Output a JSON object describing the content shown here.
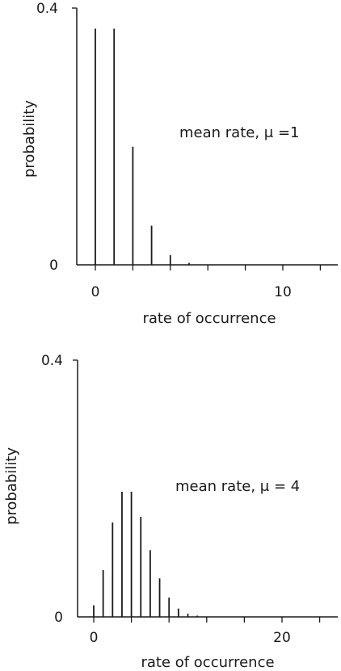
{
  "chart_data": [
    {
      "type": "bar",
      "style": "stem",
      "xlabel": "rate of occurrence",
      "ylabel": "probability",
      "annotation": "mean rate, μ =1",
      "ylim": [
        0,
        0.4
      ],
      "y_tick_labels": [
        "0",
        "0.4"
      ],
      "xlim": [
        -1,
        13
      ],
      "x_tick_labels": [
        "0",
        "10"
      ],
      "x": [
        0,
        1,
        2,
        3,
        4,
        5
      ],
      "values": [
        0.368,
        0.368,
        0.184,
        0.061,
        0.015,
        0.003
      ],
      "grid": false
    },
    {
      "type": "bar",
      "style": "stem",
      "xlabel": "rate of occurrence",
      "ylabel": "probability",
      "annotation": "mean rate, μ = 4",
      "ylim": [
        0,
        0.4
      ],
      "y_tick_labels": [
        "0",
        "0.4"
      ],
      "xlim": [
        -1,
        26
      ],
      "x_tick_labels": [
        "0",
        "20"
      ],
      "x": [
        0,
        1,
        2,
        3,
        4,
        5,
        6,
        7,
        8,
        9,
        10,
        11
      ],
      "values": [
        0.018,
        0.073,
        0.147,
        0.195,
        0.195,
        0.156,
        0.104,
        0.06,
        0.03,
        0.013,
        0.005,
        0.002
      ],
      "grid": false
    }
  ]
}
